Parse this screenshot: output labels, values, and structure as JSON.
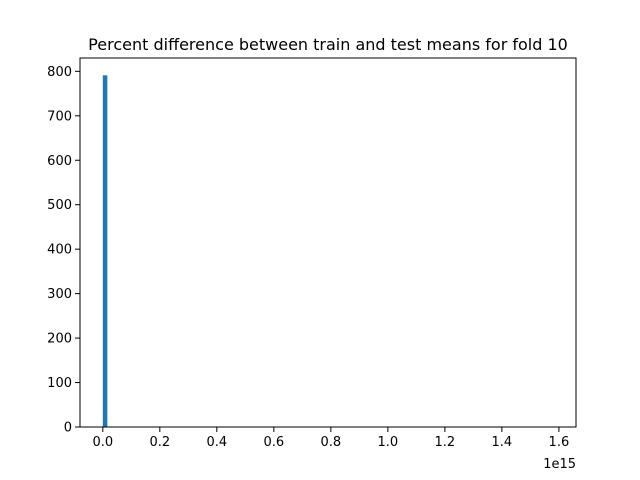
{
  "chart_data": {
    "type": "bar",
    "subtype": "histogram",
    "title": "Percent difference between train and test means for fold  10",
    "xlabel": "",
    "ylabel": "",
    "x_offset_label": "1e15",
    "xlim": [
      -0.08,
      1.66
    ],
    "ylim": [
      0,
      830
    ],
    "x_ticks": [
      0.0,
      0.2,
      0.4,
      0.6,
      0.8,
      1.0,
      1.2,
      1.4,
      1.6
    ],
    "x_tick_labels": [
      "0.0",
      "0.2",
      "0.4",
      "0.6",
      "0.8",
      "1.0",
      "1.2",
      "1.4",
      "1.6"
    ],
    "y_ticks": [
      0,
      100,
      200,
      300,
      400,
      500,
      600,
      700,
      800
    ],
    "y_tick_labels": [
      "0",
      "100",
      "200",
      "300",
      "400",
      "500",
      "600",
      "700",
      "800"
    ],
    "bins": [
      {
        "x_start": 0.0,
        "x_end": 0.016,
        "count": 791
      }
    ],
    "bar_color": "#1f77b4",
    "grid": false
  }
}
